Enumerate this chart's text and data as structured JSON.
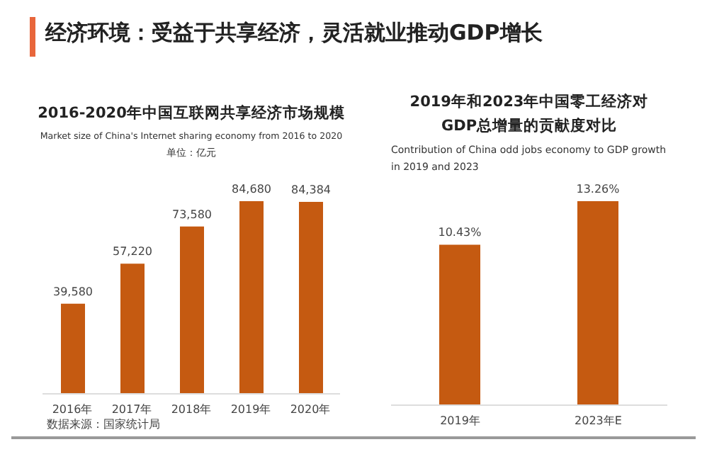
{
  "chart_data": [
    {
      "type": "bar",
      "title": "2016-2020年中国互联网共享经济市场规模",
      "subtitle": "Market size of China's Internet sharing economy from 2016  to 2020",
      "annotations": [
        "经济环境：受益于共享经济，灵活就业推动GDP增长",
        "单位：亿元",
        "数据来源：国家统计局"
      ],
      "categories": [
        "2016年",
        "2017年",
        "2018年",
        "2019年",
        "2020年"
      ],
      "values": [
        39580,
        57220,
        73580,
        84680,
        84384
      ],
      "value_labels": [
        "39,580",
        "57,220",
        "73,580",
        "84,680",
        "84,384"
      ],
      "color": "#c55a11",
      "grid": false,
      "legend": false
    },
    {
      "type": "bar",
      "title": "2019年和2023年中国零工经济对GDP总增量的贡献度对比",
      "subtitle": "Contribution of  China odd jobs economy to GDP growth in 2019 and 2023",
      "categories": [
        "2019年",
        "2023年E"
      ],
      "values": [
        10.43,
        13.26
      ],
      "value_labels": [
        "10.43%",
        "13.26%"
      ],
      "color": "#c55a11",
      "grid": false,
      "legend": false
    }
  ]
}
